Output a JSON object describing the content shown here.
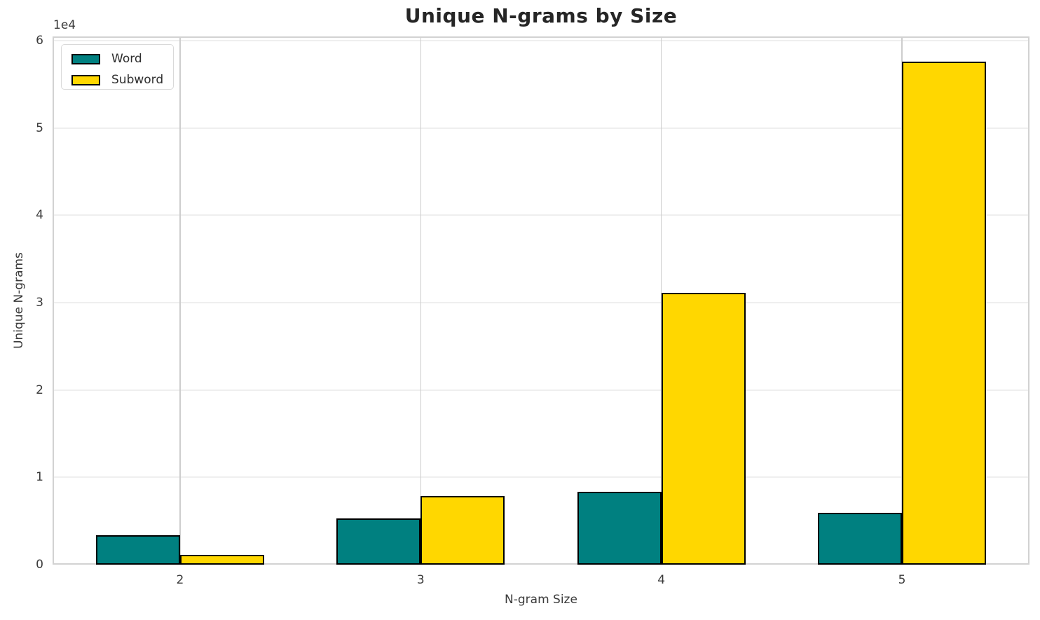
{
  "chart_data": {
    "type": "bar",
    "title": "Unique N-grams by Size",
    "xlabel": "N-gram Size",
    "ylabel": "Unique N-grams",
    "y_offset_label": "1e4",
    "categories": [
      "2",
      "3",
      "4",
      "5"
    ],
    "series": [
      {
        "name": "Word",
        "color": "#008080",
        "values": [
          3350,
          5300,
          8350,
          5950
        ]
      },
      {
        "name": "Subword",
        "color": "#ffd700",
        "values": [
          1100,
          7900,
          31100,
          57600
        ]
      }
    ],
    "bar_edge_color": "#000000",
    "y_ticks": [
      0,
      10000,
      20000,
      30000,
      40000,
      50000,
      60000
    ],
    "y_tick_labels": [
      "0",
      "1",
      "2",
      "3",
      "4",
      "5",
      "6"
    ],
    "ylim": [
      0,
      60500
    ],
    "grid": true,
    "legend_position": "upper-left"
  }
}
